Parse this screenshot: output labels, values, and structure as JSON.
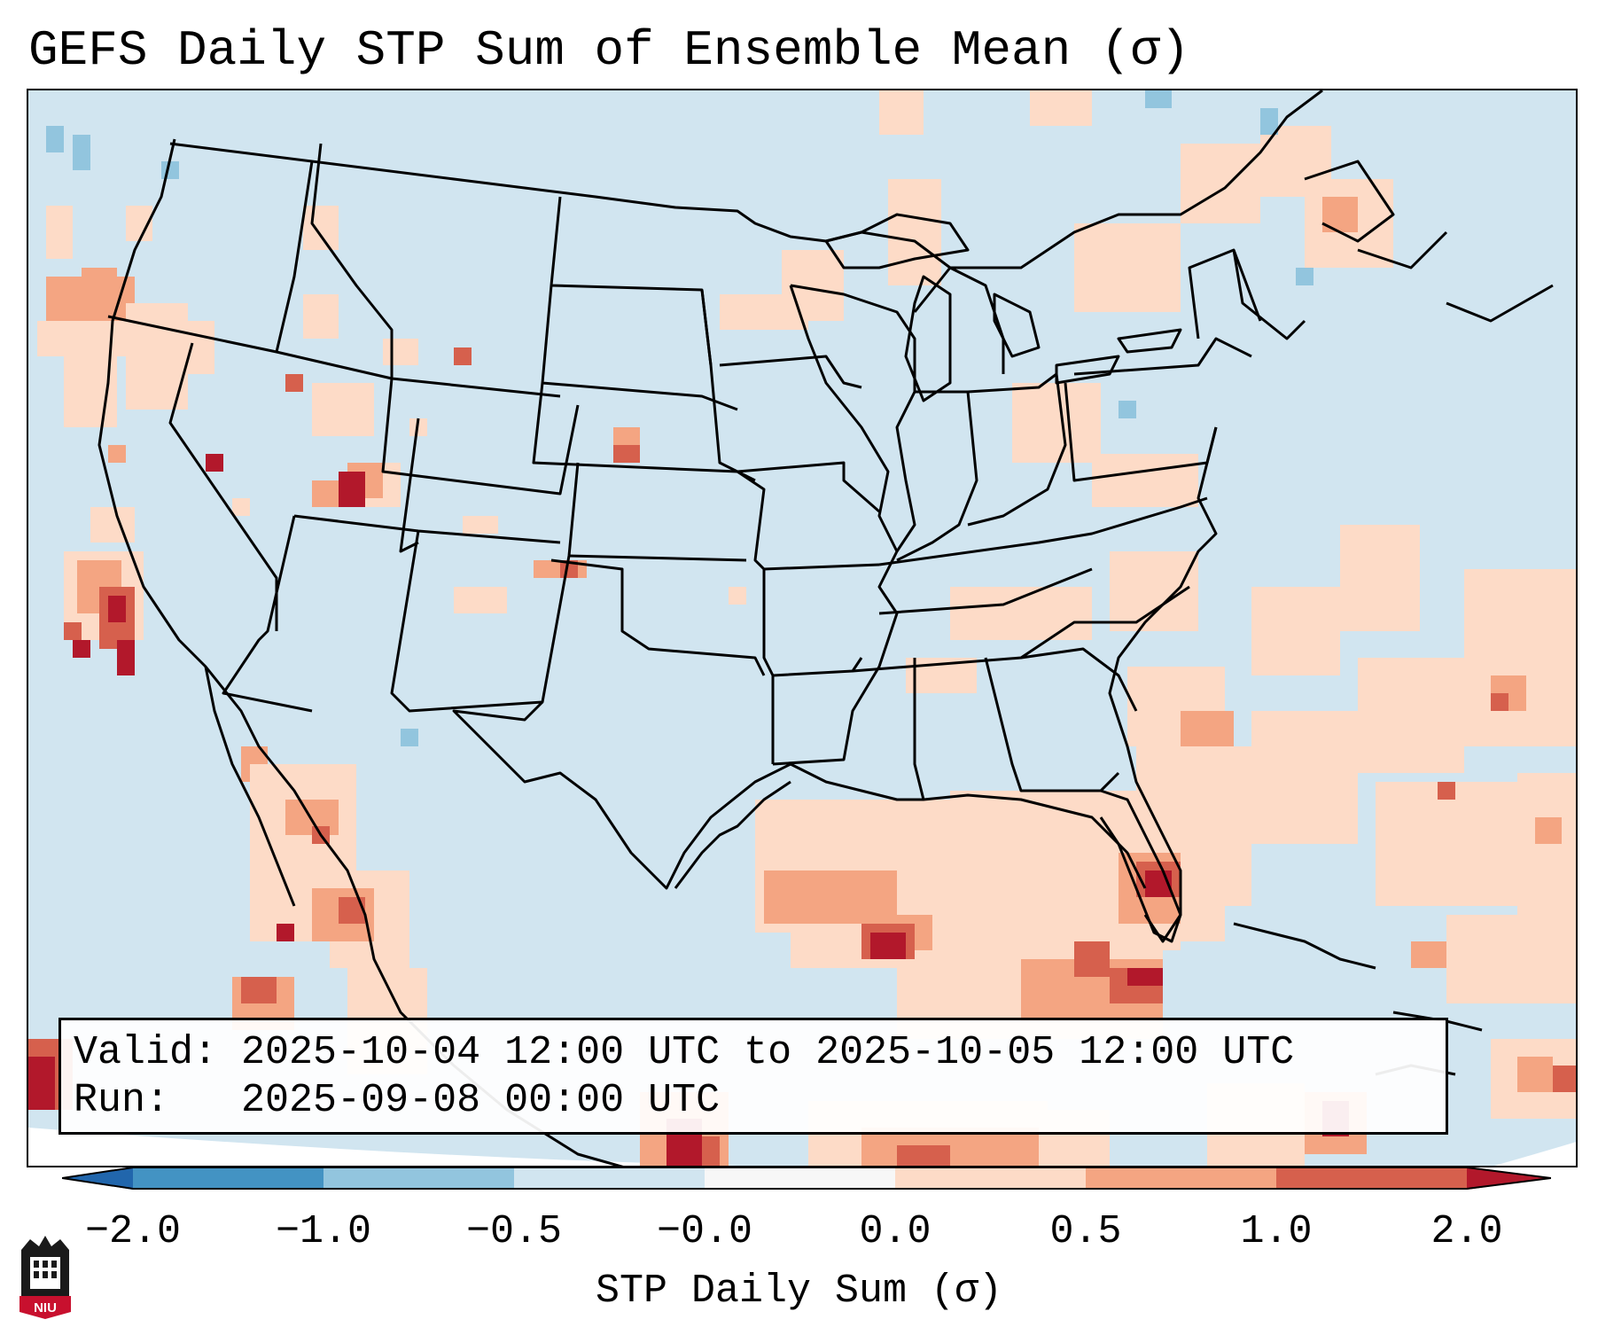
{
  "title": "GEFS Daily STP Sum of Ensemble Mean (σ)",
  "info_box": {
    "valid_label": "Valid:",
    "valid_value": "2025-10-04 12:00 UTC to 2025-10-05 12:00 UTC",
    "run_label": "Run:",
    "run_value": "2025-09-08 00:00 UTC"
  },
  "colorbar": {
    "label": "STP Daily Sum (σ)",
    "ticks": [
      "−2.0",
      "−1.0",
      "−0.5",
      "−0.0",
      "0.0",
      "0.5",
      "1.0",
      "2.0"
    ],
    "bins": [
      {
        "from": -2.0,
        "to": -1.0,
        "color": "#4393c3"
      },
      {
        "from": -1.0,
        "to": -0.5,
        "color": "#92c5de"
      },
      {
        "from": -0.5,
        "to": 0.0,
        "color": "#d1e5f0"
      },
      {
        "from": 0.0,
        "to": 0.0,
        "color": "#f7f7f7"
      },
      {
        "from": 0.0,
        "to": 0.5,
        "color": "#fddbc7"
      },
      {
        "from": 0.5,
        "to": 1.0,
        "color": "#f4a582"
      },
      {
        "from": 1.0,
        "to": 2.0,
        "color": "#d6604d"
      }
    ],
    "under_color": "#2166ac",
    "over_color": "#b2182b"
  },
  "colors": {
    "background_field": "#d1e5f0",
    "light_positive": "#fddbc7",
    "medium_positive": "#f4a582",
    "strong_positive": "#d6604d",
    "extreme_positive": "#b2182b",
    "light_negative": "#92c5de"
  },
  "logo": {
    "text": "NIU"
  }
}
